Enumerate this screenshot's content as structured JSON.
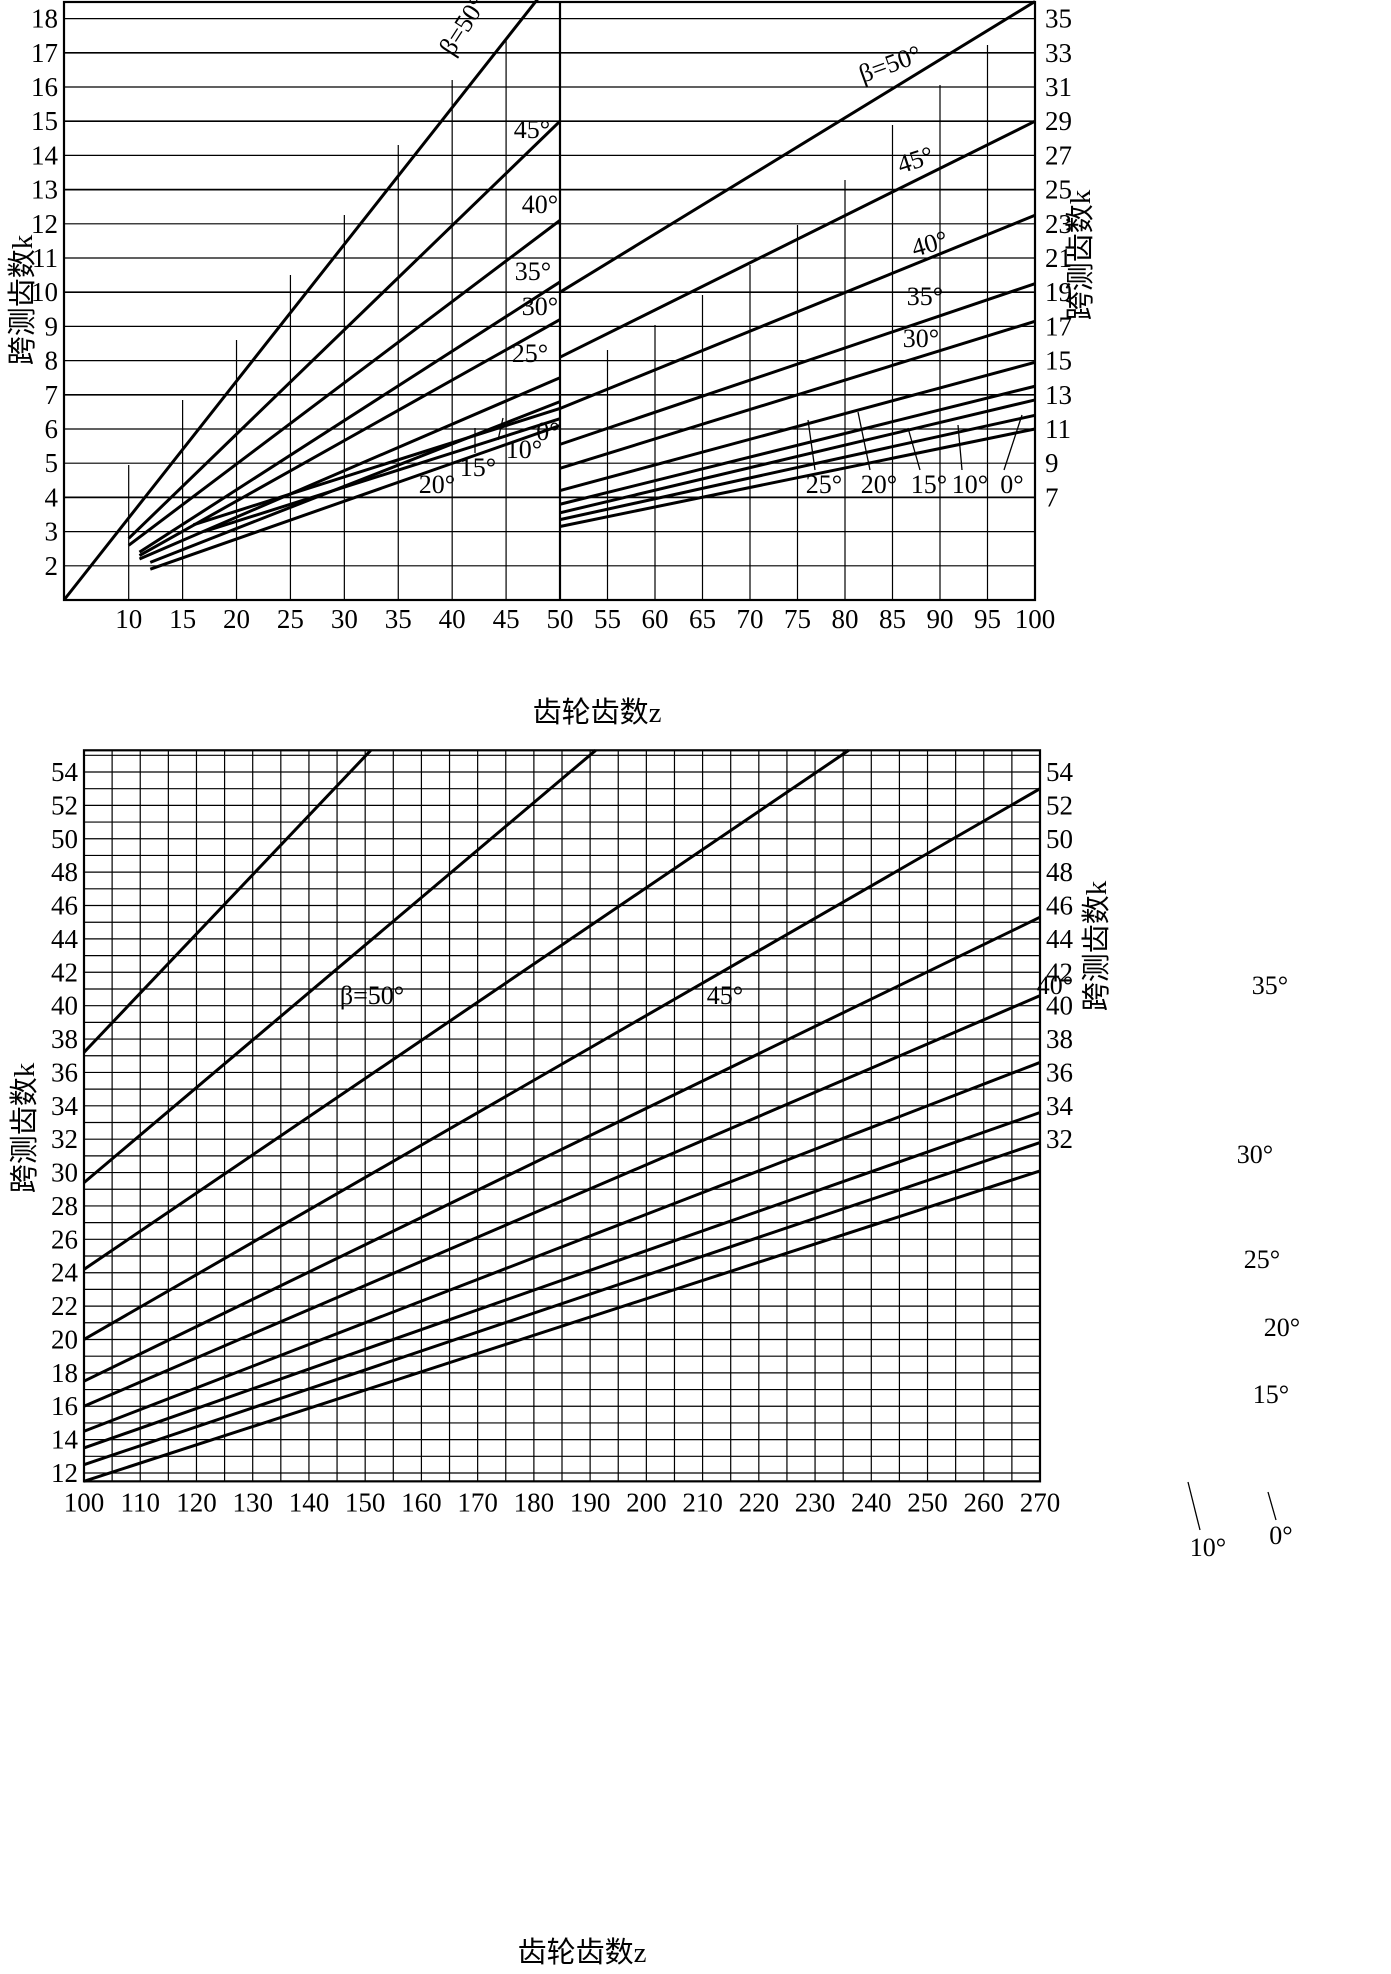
{
  "chart_data": [
    {
      "type": "line",
      "title": "",
      "xlabel": "齿轮齿数z",
      "ylabel_left": "跨测齿数k",
      "ylabel_right": "",
      "xlim": [
        4,
        50
      ],
      "ylim": [
        1,
        18.8
      ],
      "x_ticks": [
        10,
        15,
        20,
        25,
        30,
        35,
        40,
        45,
        50
      ],
      "y_ticks_left": [
        2,
        3,
        4,
        5,
        6,
        7,
        8,
        9,
        10,
        11,
        12,
        13,
        14,
        15,
        16,
        17,
        18
      ],
      "grid": true,
      "series": [
        {
          "name": "β=50°",
          "x": [
            4,
            48.5
          ],
          "y": [
            1,
            18.8
          ]
        },
        {
          "name": "45°",
          "x": [
            10,
            50
          ],
          "y": [
            2.8,
            15
          ]
        },
        {
          "name": "40°",
          "x": [
            10,
            50
          ],
          "y": [
            2.6,
            12.1
          ]
        },
        {
          "name": "35°",
          "x": [
            11,
            50
          ],
          "y": [
            2.4,
            10.3
          ]
        },
        {
          "name": "30°",
          "x": [
            11,
            50
          ],
          "y": [
            2.3,
            9.2
          ]
        },
        {
          "name": "25°",
          "x": [
            11,
            50
          ],
          "y": [
            2.2,
            7.5
          ]
        },
        {
          "name": "20°",
          "x": [
            12,
            50
          ],
          "y": [
            2.1,
            6.8
          ]
        },
        {
          "name": "15°",
          "x": [
            16,
            50
          ],
          "y": [
            3.2,
            6.6
          ]
        },
        {
          "name": "10°",
          "x": [
            17,
            50
          ],
          "y": [
            3,
            6.3
          ]
        },
        {
          "name": "0°",
          "x": [
            12,
            50
          ],
          "y": [
            1.9,
            6.1
          ]
        }
      ]
    },
    {
      "type": "line",
      "title": "",
      "xlabel": "齿轮齿数z",
      "ylabel_left": "",
      "ylabel_right": "跨测齿数k",
      "xlim": [
        50,
        100
      ],
      "ylim": [
        1,
        18.8
      ],
      "x_ticks": [
        55,
        60,
        65,
        70,
        75,
        80,
        85,
        90,
        95,
        100
      ],
      "y_ticks_right": [
        {
          "label": "7",
          "k": 4
        },
        {
          "label": "9",
          "k": 5
        },
        {
          "label": "11",
          "k": 6
        },
        {
          "label": "13",
          "k": 7
        },
        {
          "label": "15",
          "k": 8
        },
        {
          "label": "17",
          "k": 9
        },
        {
          "label": "19",
          "k": 10
        },
        {
          "label": "21",
          "k": 11
        },
        {
          "label": "23",
          "k": 12
        },
        {
          "label": "25",
          "k": 13
        },
        {
          "label": "27",
          "k": 14
        },
        {
          "label": "29",
          "k": 15
        },
        {
          "label": "31",
          "k": 16
        },
        {
          "label": "33",
          "k": 17
        },
        {
          "label": "35",
          "k": 18
        }
      ],
      "grid": true,
      "series": [
        {
          "name": "β=50°",
          "x": [
            50,
            100
          ],
          "y": [
            19,
            36
          ]
        },
        {
          "name": "45°",
          "x": [
            50,
            100
          ],
          "y": [
            15.2,
            29
          ]
        },
        {
          "name": "40°",
          "x": [
            50,
            100
          ],
          "y": [
            12.2,
            23.5
          ]
        },
        {
          "name": "35°",
          "x": [
            50,
            100
          ],
          "y": [
            10.1,
            19.5
          ]
        },
        {
          "name": "30°",
          "x": [
            50,
            100
          ],
          "y": [
            8.7,
            17.3
          ]
        },
        {
          "name": "25°",
          "x": [
            50,
            100
          ],
          "y": [
            7.4,
            14.9
          ]
        },
        {
          "name": "20°",
          "x": [
            50,
            100
          ],
          "y": [
            6.6,
            13.5
          ]
        },
        {
          "name": "15°",
          "x": [
            50,
            100
          ],
          "y": [
            6.1,
            12.7
          ]
        },
        {
          "name": "10°",
          "x": [
            50,
            100
          ],
          "y": [
            5.7,
            11.8
          ]
        },
        {
          "name": "0°",
          "x": [
            50,
            100
          ],
          "y": [
            5.3,
            11.0
          ]
        }
      ]
    },
    {
      "type": "line",
      "title": "",
      "xlabel": "齿轮齿数z",
      "ylabel_left": "跨测齿数k",
      "ylabel_right": "跨测齿数k",
      "xlim": [
        100,
        270
      ],
      "ylim": [
        11.5,
        55.3
      ],
      "x_ticks": [
        100,
        110,
        120,
        130,
        140,
        150,
        160,
        170,
        180,
        190,
        200,
        210,
        220,
        230,
        240,
        250,
        260,
        270
      ],
      "y_ticks_left": [
        12,
        14,
        16,
        18,
        20,
        22,
        24,
        26,
        28,
        30,
        32,
        34,
        36,
        38,
        40,
        42,
        44,
        46,
        48,
        50,
        52,
        54
      ],
      "y_ticks_right": [
        32,
        34,
        36,
        38,
        40,
        42,
        44,
        46,
        48,
        50,
        52,
        54
      ],
      "grid": true,
      "series": [
        {
          "name": "β=50°",
          "x": [
            100,
            151
          ],
          "y": [
            37.2,
            55.3
          ]
        },
        {
          "name": "45°",
          "x": [
            100,
            191
          ],
          "y": [
            29.4,
            55.3
          ]
        },
        {
          "name": "40°",
          "x": [
            100,
            236
          ],
          "y": [
            24.2,
            55.3
          ]
        },
        {
          "name": "35°",
          "x": [
            100,
            270
          ],
          "y": [
            20,
            53
          ]
        },
        {
          "name": "30°",
          "x": [
            100,
            270
          ],
          "y": [
            17.5,
            45.3
          ]
        },
        {
          "name": "25°",
          "x": [
            100,
            270
          ],
          "y": [
            16,
            40.6
          ]
        },
        {
          "name": "20°",
          "x": [
            100,
            270
          ],
          "y": [
            14.5,
            36.6
          ]
        },
        {
          "name": "15°",
          "x": [
            100,
            270
          ],
          "y": [
            13.5,
            33.6
          ]
        },
        {
          "name": "10°",
          "x": [
            100,
            270
          ],
          "y": [
            12.5,
            31.8
          ]
        },
        {
          "name": "0°",
          "x": [
            100,
            270
          ],
          "y": [
            11.5,
            30.1
          ]
        }
      ]
    }
  ]
}
